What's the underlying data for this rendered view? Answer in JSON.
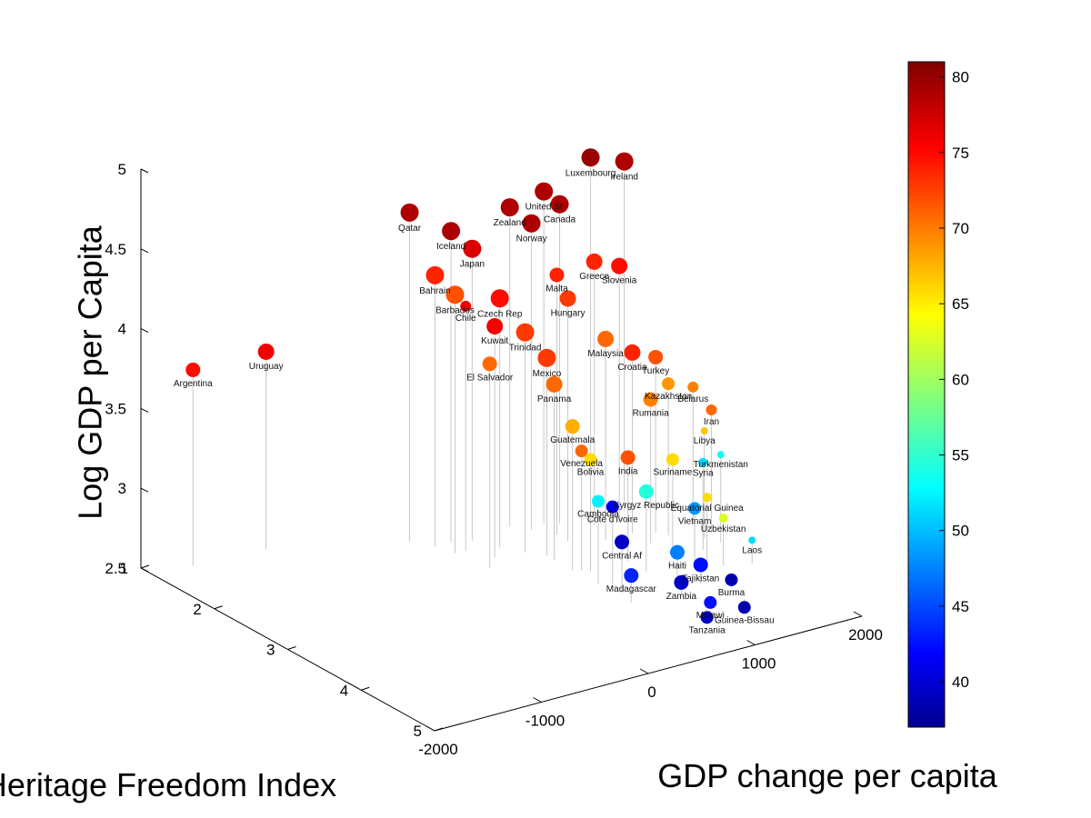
{
  "chart_data": {
    "type": "scatter",
    "xlabel": "GDP change per capita",
    "ylabel": "Heritage Freedom Index",
    "zlabel": "Log GDP per Capita",
    "x_ticks": [
      "-2000",
      "-1000",
      "0",
      "1000",
      "2000"
    ],
    "y_ticks": [
      "1",
      "2",
      "3",
      "4",
      "5"
    ],
    "z_ticks": [
      "2.5",
      "3",
      "3.5",
      "4",
      "4.5",
      "5"
    ],
    "xlim": [
      -2000,
      2000
    ],
    "ylim": [
      1,
      5
    ],
    "zlim": [
      2.5,
      5
    ],
    "colorbar": {
      "ticks": [
        "40",
        "45",
        "50",
        "55",
        "60",
        "65",
        "70",
        "75",
        "80"
      ],
      "range": [
        37,
        81
      ],
      "colormap": "jet"
    },
    "points": [
      {
        "label": "Luxembourg",
        "x": 1350,
        "y": 2.25,
        "z": 4.79,
        "color_value": 80,
        "size": 10
      },
      {
        "label": "Ireland",
        "x": 1700,
        "y": 2.2,
        "z": 4.69,
        "color_value": 79,
        "size": 10
      },
      {
        "label": "United St",
        "x": 1050,
        "y": 2.05,
        "z": 4.58,
        "color_value": 79,
        "size": 10
      },
      {
        "label": "Canada",
        "x": 1150,
        "y": 2.12,
        "z": 4.5,
        "color_value": 79,
        "size": 10
      },
      {
        "label": "Zealand",
        "x": 800,
        "y": 1.95,
        "z": 4.5,
        "color_value": 79,
        "size": 10
      },
      {
        "label": "Norway",
        "x": 900,
        "y": 2.1,
        "z": 4.42,
        "color_value": 79,
        "size": 10
      },
      {
        "label": "Qatar",
        "x": 0,
        "y": 1.75,
        "z": 4.56,
        "color_value": 79,
        "size": 10
      },
      {
        "label": "Iceland",
        "x": 250,
        "y": 1.95,
        "z": 4.45,
        "color_value": 79,
        "size": 10
      },
      {
        "label": "Japan",
        "x": 400,
        "y": 2.02,
        "z": 4.33,
        "color_value": 77,
        "size": 10
      },
      {
        "label": "Bahrain",
        "x": 100,
        "y": 1.95,
        "z": 4.2,
        "color_value": 74,
        "size": 10
      },
      {
        "label": "Barbados",
        "x": 150,
        "y": 2.15,
        "z": 4.12,
        "color_value": 72,
        "size": 10
      },
      {
        "label": "Czech Rep",
        "x": 500,
        "y": 2.25,
        "z": 4.06,
        "color_value": 75,
        "size": 10
      },
      {
        "label": "Chile",
        "x": 250,
        "y": 2.15,
        "z": 4.03,
        "color_value": 76,
        "size": 6
      },
      {
        "label": "Malta",
        "x": 1000,
        "y": 2.3,
        "z": 4.13,
        "color_value": 74,
        "size": 8
      },
      {
        "label": "Hungary",
        "x": 1000,
        "y": 2.45,
        "z": 4.02,
        "color_value": 73,
        "size": 9
      },
      {
        "label": "Greece",
        "x": 1350,
        "y": 2.3,
        "z": 4.15,
        "color_value": 74,
        "size": 9
      },
      {
        "label": "Slovenia",
        "x": 1550,
        "y": 2.35,
        "z": 4.1,
        "color_value": 75,
        "size": 9
      },
      {
        "label": "Kuwait",
        "x": 350,
        "y": 2.4,
        "z": 3.95,
        "color_value": 76,
        "size": 9
      },
      {
        "label": "Trinidad",
        "x": 600,
        "y": 2.45,
        "z": 3.88,
        "color_value": 73,
        "size": 10
      },
      {
        "label": "Argentina",
        "x": -1650,
        "y": 1.2,
        "z": 3.73,
        "color_value": 75,
        "size": 8
      },
      {
        "label": "Uruguay",
        "x": -1000,
        "y": 1.25,
        "z": 3.74,
        "color_value": 76,
        "size": 9
      },
      {
        "label": "El Salvador",
        "x": 200,
        "y": 2.55,
        "z": 3.78,
        "color_value": 71,
        "size": 8
      },
      {
        "label": "Mexico",
        "x": 700,
        "y": 2.6,
        "z": 3.74,
        "color_value": 73,
        "size": 10
      },
      {
        "label": "Malaysia",
        "x": 1250,
        "y": 2.6,
        "z": 3.76,
        "color_value": 71,
        "size": 9
      },
      {
        "label": "Croatia",
        "x": 1500,
        "y": 2.6,
        "z": 3.63,
        "color_value": 74,
        "size": 9
      },
      {
        "label": "Turkey",
        "x": 1650,
        "y": 2.7,
        "z": 3.6,
        "color_value": 72,
        "size": 8
      },
      {
        "label": "Panama",
        "x": 700,
        "y": 2.7,
        "z": 3.6,
        "color_value": 71,
        "size": 9
      },
      {
        "label": "Kazakhstan",
        "x": 1700,
        "y": 2.8,
        "z": 3.45,
        "color_value": 69,
        "size": 7
      },
      {
        "label": "Rumania",
        "x": 1500,
        "y": 2.85,
        "z": 3.4,
        "color_value": 70,
        "size": 8
      },
      {
        "label": "Belarus",
        "x": 2000,
        "y": 2.7,
        "z": 3.35,
        "color_value": 70,
        "size": 6
      },
      {
        "label": "Iran",
        "x": 2000,
        "y": 2.95,
        "z": 3.27,
        "color_value": 71,
        "size": 6
      },
      {
        "label": "Libya",
        "x": 1900,
        "y": 3.0,
        "z": 3.17,
        "color_value": 67,
        "size": 4
      },
      {
        "label": "Guatemala",
        "x": 700,
        "y": 2.95,
        "z": 3.4,
        "color_value": 68,
        "size": 8
      },
      {
        "label": "Venezuela",
        "x": 750,
        "y": 3.0,
        "z": 3.25,
        "color_value": 71,
        "size": 7
      },
      {
        "label": "Bolivia",
        "x": 800,
        "y": 3.05,
        "z": 3.2,
        "color_value": 66,
        "size": 7
      },
      {
        "label": "India",
        "x": 1150,
        "y": 3.05,
        "z": 3.15,
        "color_value": 72,
        "size": 8
      },
      {
        "label": "Suriname",
        "x": 1500,
        "y": 3.15,
        "z": 3.1,
        "color_value": 66,
        "size": 7
      },
      {
        "label": "Turkmenistan",
        "x": 1950,
        "y": 3.15,
        "z": 3.05,
        "color_value": 54,
        "size": 4
      },
      {
        "label": "Syria",
        "x": 1750,
        "y": 3.2,
        "z": 3.05,
        "color_value": 52,
        "size": 5
      },
      {
        "label": "Cambodia",
        "x": 700,
        "y": 3.3,
        "z": 3.02,
        "color_value": 53,
        "size": 7
      },
      {
        "label": "Cote d'Ivoire",
        "x": 800,
        "y": 3.35,
        "z": 2.98,
        "color_value": 42,
        "size": 7
      },
      {
        "label": "Kyrgyz Republic",
        "x": 1150,
        "y": 3.3,
        "z": 3.0,
        "color_value": 55,
        "size": 8
      },
      {
        "label": "Equatorial Guinea",
        "x": 1650,
        "y": 3.4,
        "z": 2.9,
        "color_value": 66,
        "size": 5
      },
      {
        "label": "Vietnam",
        "x": 1500,
        "y": 3.45,
        "z": 2.87,
        "color_value": 49,
        "size": 7
      },
      {
        "label": "Uzbekistan",
        "x": 1700,
        "y": 3.55,
        "z": 2.8,
        "color_value": 63,
        "size": 5
      },
      {
        "label": "Central Af",
        "x": 750,
        "y": 3.55,
        "z": 2.82,
        "color_value": 40,
        "size": 8
      },
      {
        "label": "Haiti",
        "x": 1200,
        "y": 3.65,
        "z": 2.7,
        "color_value": 48,
        "size": 8
      },
      {
        "label": "Madagascar",
        "x": 700,
        "y": 3.75,
        "z": 2.67,
        "color_value": 44,
        "size": 8
      },
      {
        "label": "Tajikistan",
        "x": 1350,
        "y": 3.75,
        "z": 2.62,
        "color_value": 43,
        "size": 8
      },
      {
        "label": "Laos",
        "x": 1900,
        "y": 3.65,
        "z": 2.65,
        "color_value": 52,
        "size": 4
      },
      {
        "label": "Zambia",
        "x": 1100,
        "y": 3.85,
        "z": 2.58,
        "color_value": 40,
        "size": 8
      },
      {
        "label": "Burma",
        "x": 1500,
        "y": 3.95,
        "z": 2.55,
        "color_value": 39,
        "size": 7
      },
      {
        "label": "Malawi",
        "x": 1200,
        "y": 4.1,
        "z": 2.5,
        "color_value": 43,
        "size": 7
      },
      {
        "label": "Tanzania",
        "x": 1100,
        "y": 4.2,
        "z": 2.45,
        "color_value": 40,
        "size": 7
      },
      {
        "label": "Guinea-Bissau",
        "x": 1450,
        "y": 4.2,
        "z": 2.45,
        "color_value": 39,
        "size": 7
      }
    ]
  }
}
